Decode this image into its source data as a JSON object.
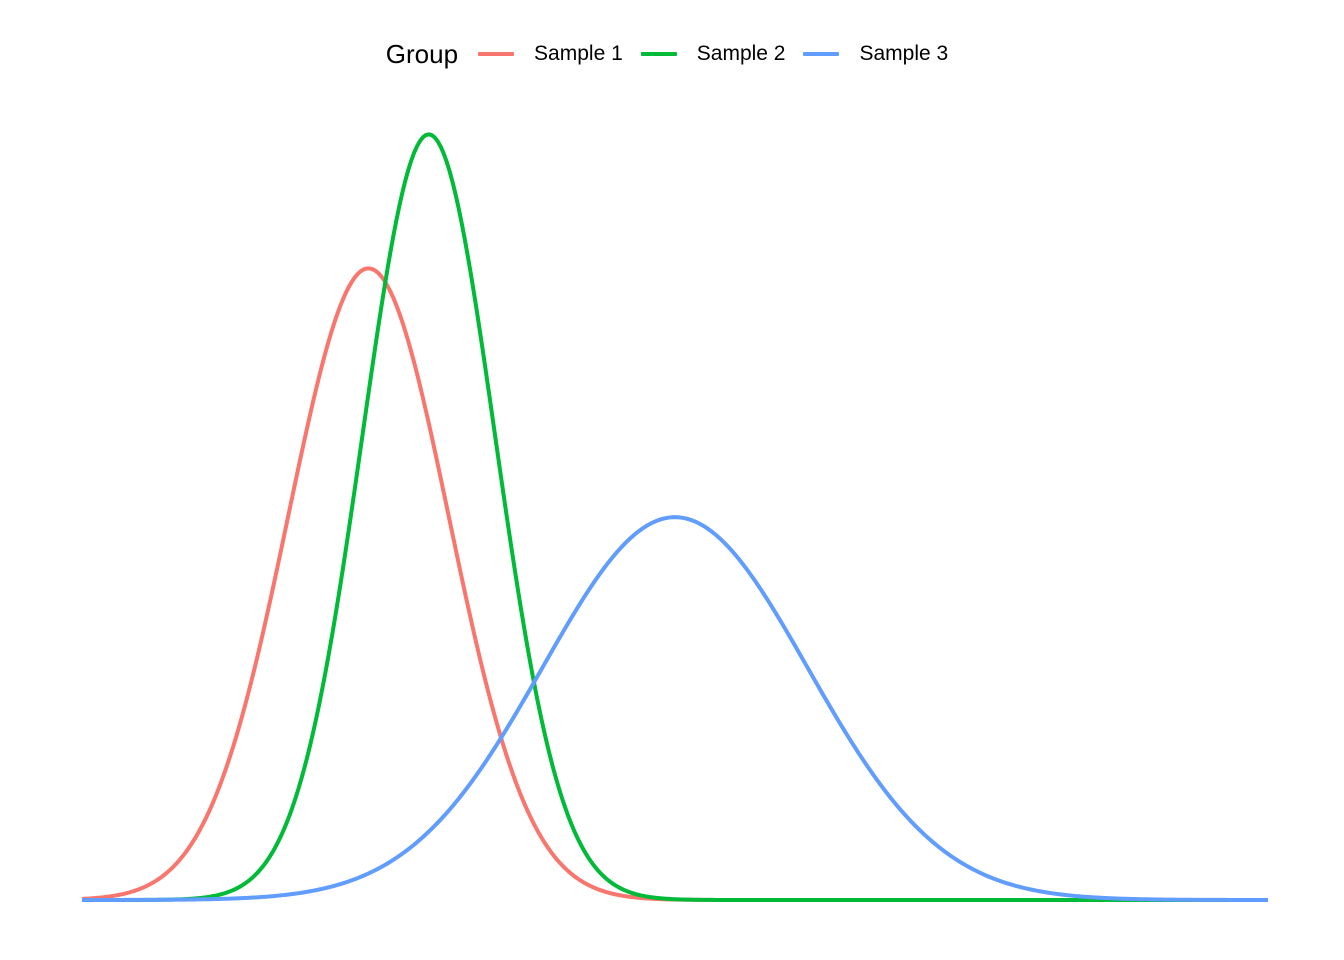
{
  "chart_data": {
    "type": "line",
    "title": "",
    "xlabel": "",
    "ylabel": "",
    "grid": false,
    "axes_visible": false,
    "legend_position": "top",
    "legend_title": "Group",
    "x_range": [
      -2.4,
      9.4
    ],
    "y_range": [
      0,
      0.6
    ],
    "series": [
      {
        "name": "Sample 1",
        "color": "#F8766D",
        "distribution": "normal",
        "mean": 0.45,
        "sd": 0.8
      },
      {
        "name": "Sample 2",
        "color": "#00BA38",
        "distribution": "normal",
        "mean": 1.05,
        "sd": 0.66
      },
      {
        "name": "Sample 3",
        "color": "#619CFF",
        "distribution": "normal",
        "mean": 3.5,
        "sd": 1.32
      }
    ]
  }
}
